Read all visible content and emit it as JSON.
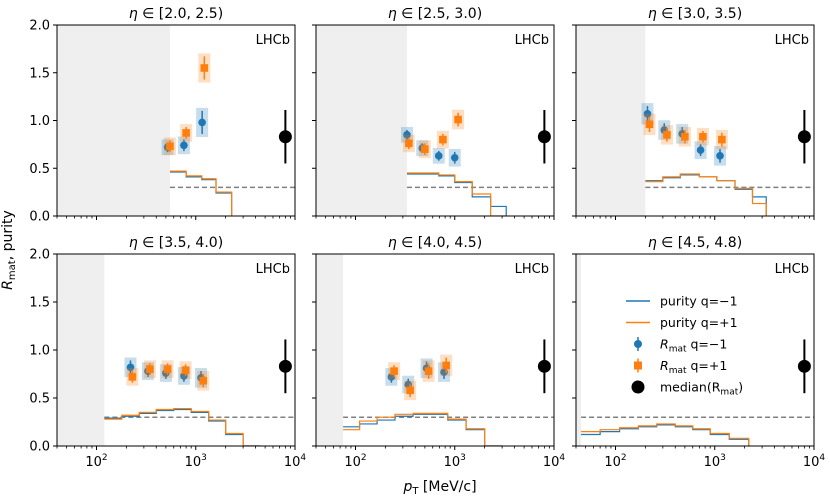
{
  "chart_data": {
    "type": "scatter",
    "ylabel": "R_mat, purity",
    "xlabel": "p_T [MeV/c]",
    "xscale": "log",
    "xlim": [
      40,
      10000
    ],
    "ylim": [
      0,
      2.0
    ],
    "ytick_values": [
      0,
      0.5,
      1.0,
      1.5,
      2.0
    ],
    "ytick_labels": [
      "0.0",
      "0.5",
      "1.0",
      "1.5",
      "2.0"
    ],
    "xtick_values": [
      100,
      1000,
      10000
    ],
    "xtick_labels": [
      {
        "base": "10",
        "exp": "2"
      },
      {
        "base": "10",
        "exp": "3"
      },
      {
        "base": "10",
        "exp": "4"
      }
    ],
    "experiment_label": "LHCb",
    "reference_line": 0.3,
    "legend": {
      "position": "inside bottom-right panel",
      "entries": [
        {
          "label": "purity q=−1",
          "kind": "line",
          "color": "#1f77b4"
        },
        {
          "label": "purity q=+1",
          "kind": "line",
          "color": "#ff7f0e"
        },
        {
          "label_main": "R",
          "label_sub": "mat",
          "label_tail": " q=−1",
          "kind": "circle",
          "color": "#1f77b4"
        },
        {
          "label_main": "R",
          "label_sub": "mat",
          "label_tail": " q=+1",
          "kind": "square",
          "color": "#ff7f0e"
        },
        {
          "label_pre": "median(R",
          "label_sub": "mat",
          "label_post": ")",
          "kind": "bigdot",
          "color": "#000000"
        }
      ]
    },
    "panels": [
      {
        "title_prefix": "η ∈ ",
        "title_range": "[2.0, 2.5)",
        "shade_until": 550,
        "median": {
          "x": 8000,
          "y": 0.83,
          "err": 0.28
        },
        "rmat_neg": [
          {
            "x": 520,
            "y": 0.72,
            "e": 0.03
          },
          {
            "x": 760,
            "y": 0.74,
            "e": 0.04
          },
          {
            "x": 1160,
            "y": 0.98,
            "e": 0.1
          }
        ],
        "rmat_pos": [
          {
            "x": 550,
            "y": 0.73,
            "e": 0.04
          },
          {
            "x": 800,
            "y": 0.87,
            "e": 0.04
          },
          {
            "x": 1220,
            "y": 1.55,
            "e": 0.1
          }
        ],
        "purity_edges": [
          550,
          800,
          1150,
          1600,
          2300
        ],
        "purity_neg": [
          0.46,
          0.41,
          0.38,
          0.24
        ],
        "purity_pos": [
          0.47,
          0.42,
          0.39,
          0.25
        ]
      },
      {
        "title_prefix": "η ∈ ",
        "title_range": "[2.5, 3.0)",
        "shade_until": 330,
        "median": {
          "x": 8000,
          "y": 0.83,
          "err": 0.28
        },
        "rmat_neg": [
          {
            "x": 330,
            "y": 0.85,
            "e": 0.03
          },
          {
            "x": 470,
            "y": 0.71,
            "e": 0.03
          },
          {
            "x": 690,
            "y": 0.63,
            "e": 0.03
          },
          {
            "x": 1000,
            "y": 0.61,
            "e": 0.04
          }
        ],
        "rmat_pos": [
          {
            "x": 345,
            "y": 0.76,
            "e": 0.04
          },
          {
            "x": 500,
            "y": 0.7,
            "e": 0.04
          },
          {
            "x": 760,
            "y": 0.8,
            "e": 0.04
          },
          {
            "x": 1080,
            "y": 1.01,
            "e": 0.05
          }
        ],
        "purity_edges": [
          330,
          470,
          690,
          1000,
          1500,
          2300,
          3300
        ],
        "purity_neg": [
          0.44,
          0.44,
          0.42,
          0.35,
          0.2,
          0.1
        ],
        "purity_pos": [
          0.45,
          0.45,
          0.43,
          0.36,
          0.23,
          0.0
        ]
      },
      {
        "title_prefix": "η ∈ ",
        "title_range": "[3.0, 3.5)",
        "shade_until": 200,
        "median": {
          "x": 8000,
          "y": 0.83,
          "err": 0.28
        },
        "rmat_neg": [
          {
            "x": 210,
            "y": 1.07,
            "e": 0.06
          },
          {
            "x": 310,
            "y": 0.9,
            "e": 0.05
          },
          {
            "x": 470,
            "y": 0.86,
            "e": 0.05
          },
          {
            "x": 720,
            "y": 0.69,
            "e": 0.04
          },
          {
            "x": 1130,
            "y": 0.63,
            "e": 0.05
          }
        ],
        "rmat_pos": [
          {
            "x": 220,
            "y": 0.96,
            "e": 0.06
          },
          {
            "x": 330,
            "y": 0.85,
            "e": 0.05
          },
          {
            "x": 500,
            "y": 0.83,
            "e": 0.05
          },
          {
            "x": 760,
            "y": 0.83,
            "e": 0.04
          },
          {
            "x": 1180,
            "y": 0.8,
            "e": 0.05
          }
        ],
        "purity_edges": [
          200,
          300,
          450,
          700,
          1050,
          1600,
          2400,
          3300
        ],
        "purity_neg": [
          0.37,
          0.4,
          0.43,
          0.41,
          0.37,
          0.28,
          0.2
        ],
        "purity_pos": [
          0.36,
          0.41,
          0.44,
          0.41,
          0.37,
          0.29,
          0.13
        ]
      },
      {
        "title_prefix": "η ∈ ",
        "title_range": "[3.5, 4.0)",
        "shade_until": 120,
        "median": {
          "x": 8000,
          "y": 0.83,
          "err": 0.28
        },
        "rmat_neg": [
          {
            "x": 220,
            "y": 0.82,
            "e": 0.05
          },
          {
            "x": 330,
            "y": 0.78,
            "e": 0.04
          },
          {
            "x": 500,
            "y": 0.76,
            "e": 0.04
          },
          {
            "x": 760,
            "y": 0.73,
            "e": 0.04
          },
          {
            "x": 1130,
            "y": 0.71,
            "e": 0.05
          }
        ],
        "rmat_pos": [
          {
            "x": 230,
            "y": 0.72,
            "e": 0.04
          },
          {
            "x": 345,
            "y": 0.8,
            "e": 0.04
          },
          {
            "x": 520,
            "y": 0.8,
            "e": 0.04
          },
          {
            "x": 790,
            "y": 0.79,
            "e": 0.04
          },
          {
            "x": 1190,
            "y": 0.68,
            "e": 0.05
          }
        ],
        "purity_edges": [
          120,
          180,
          270,
          400,
          600,
          900,
          1350,
          2000,
          3000,
          4500
        ],
        "purity_neg": [
          0.29,
          0.31,
          0.34,
          0.37,
          0.38,
          0.35,
          0.26,
          0.12,
          0.0
        ],
        "purity_pos": [
          0.28,
          0.32,
          0.35,
          0.38,
          0.39,
          0.36,
          0.27,
          0.13,
          0.0
        ]
      },
      {
        "title_prefix": "η ∈ ",
        "title_range": "[4.0, 4.5)",
        "shade_until": 75,
        "median": {
          "x": 8000,
          "y": 0.83,
          "err": 0.28
        },
        "rmat_neg": [
          {
            "x": 230,
            "y": 0.72,
            "e": 0.04
          },
          {
            "x": 340,
            "y": 0.64,
            "e": 0.04
          },
          {
            "x": 520,
            "y": 0.81,
            "e": 0.05
          },
          {
            "x": 780,
            "y": 0.77,
            "e": 0.05
          }
        ],
        "rmat_pos": [
          {
            "x": 245,
            "y": 0.78,
            "e": 0.04
          },
          {
            "x": 355,
            "y": 0.58,
            "e": 0.05
          },
          {
            "x": 545,
            "y": 0.78,
            "e": 0.06
          },
          {
            "x": 820,
            "y": 0.84,
            "e": 0.06
          }
        ],
        "purity_edges": [
          75,
          110,
          165,
          250,
          380,
          570,
          850,
          1300,
          2000,
          3000
        ],
        "purity_neg": [
          0.2,
          0.23,
          0.27,
          0.31,
          0.33,
          0.33,
          0.27,
          0.17,
          0.0
        ],
        "purity_pos": [
          0.17,
          0.26,
          0.3,
          0.33,
          0.34,
          0.34,
          0.28,
          0.18,
          0.0
        ]
      },
      {
        "title_prefix": "η ∈ ",
        "title_range": "[4.5, 4.8)",
        "shade_until": 45,
        "median": {
          "x": 8000,
          "y": 0.83,
          "err": 0.28
        },
        "rmat_neg": [],
        "rmat_pos": [],
        "purity_edges": [
          45,
          70,
          110,
          170,
          260,
          400,
          600,
          900,
          1400,
          2200
        ],
        "purity_neg": [
          0.12,
          0.15,
          0.18,
          0.2,
          0.22,
          0.2,
          0.17,
          0.12,
          0.07
        ],
        "purity_pos": [
          0.15,
          0.17,
          0.19,
          0.21,
          0.23,
          0.21,
          0.18,
          0.13,
          0.08
        ]
      }
    ]
  }
}
